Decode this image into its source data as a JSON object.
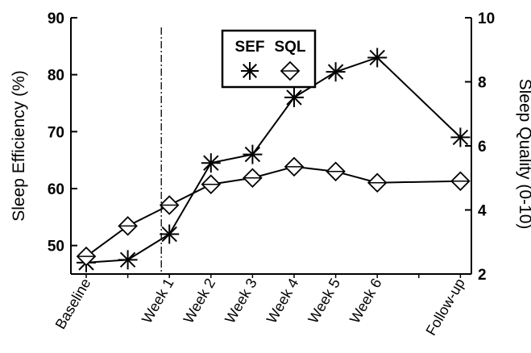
{
  "chart_data": {
    "type": "line",
    "categories": [
      "Baseline",
      "",
      "Week 1",
      "Week 2",
      "Week 3",
      "Week 4",
      "Week 5",
      "Week 6",
      "",
      "Follow-up"
    ],
    "series": [
      {
        "name": "SEF",
        "axis": "left",
        "marker": "asterisk",
        "values": [
          47,
          47.5,
          52,
          64.5,
          66,
          76,
          80.5,
          83,
          null,
          69
        ]
      },
      {
        "name": "SQL",
        "axis": "right",
        "marker": "diamond",
        "values": [
          2.55,
          3.5,
          4.15,
          4.8,
          5.0,
          5.35,
          5.2,
          4.85,
          null,
          4.9
        ]
      }
    ],
    "ylabel": "Sleep Efficiency (%)",
    "ylabel_right": "Sleep Quality (0-10)",
    "ylim": [
      45,
      90
    ],
    "yticks": [
      50,
      60,
      70,
      80,
      90
    ],
    "ylim_right": [
      2,
      10
    ],
    "yticks_right": [
      2,
      4,
      6,
      8,
      10
    ],
    "vline_after": "Week 1",
    "legend_placement": "top-center",
    "grid": false
  }
}
